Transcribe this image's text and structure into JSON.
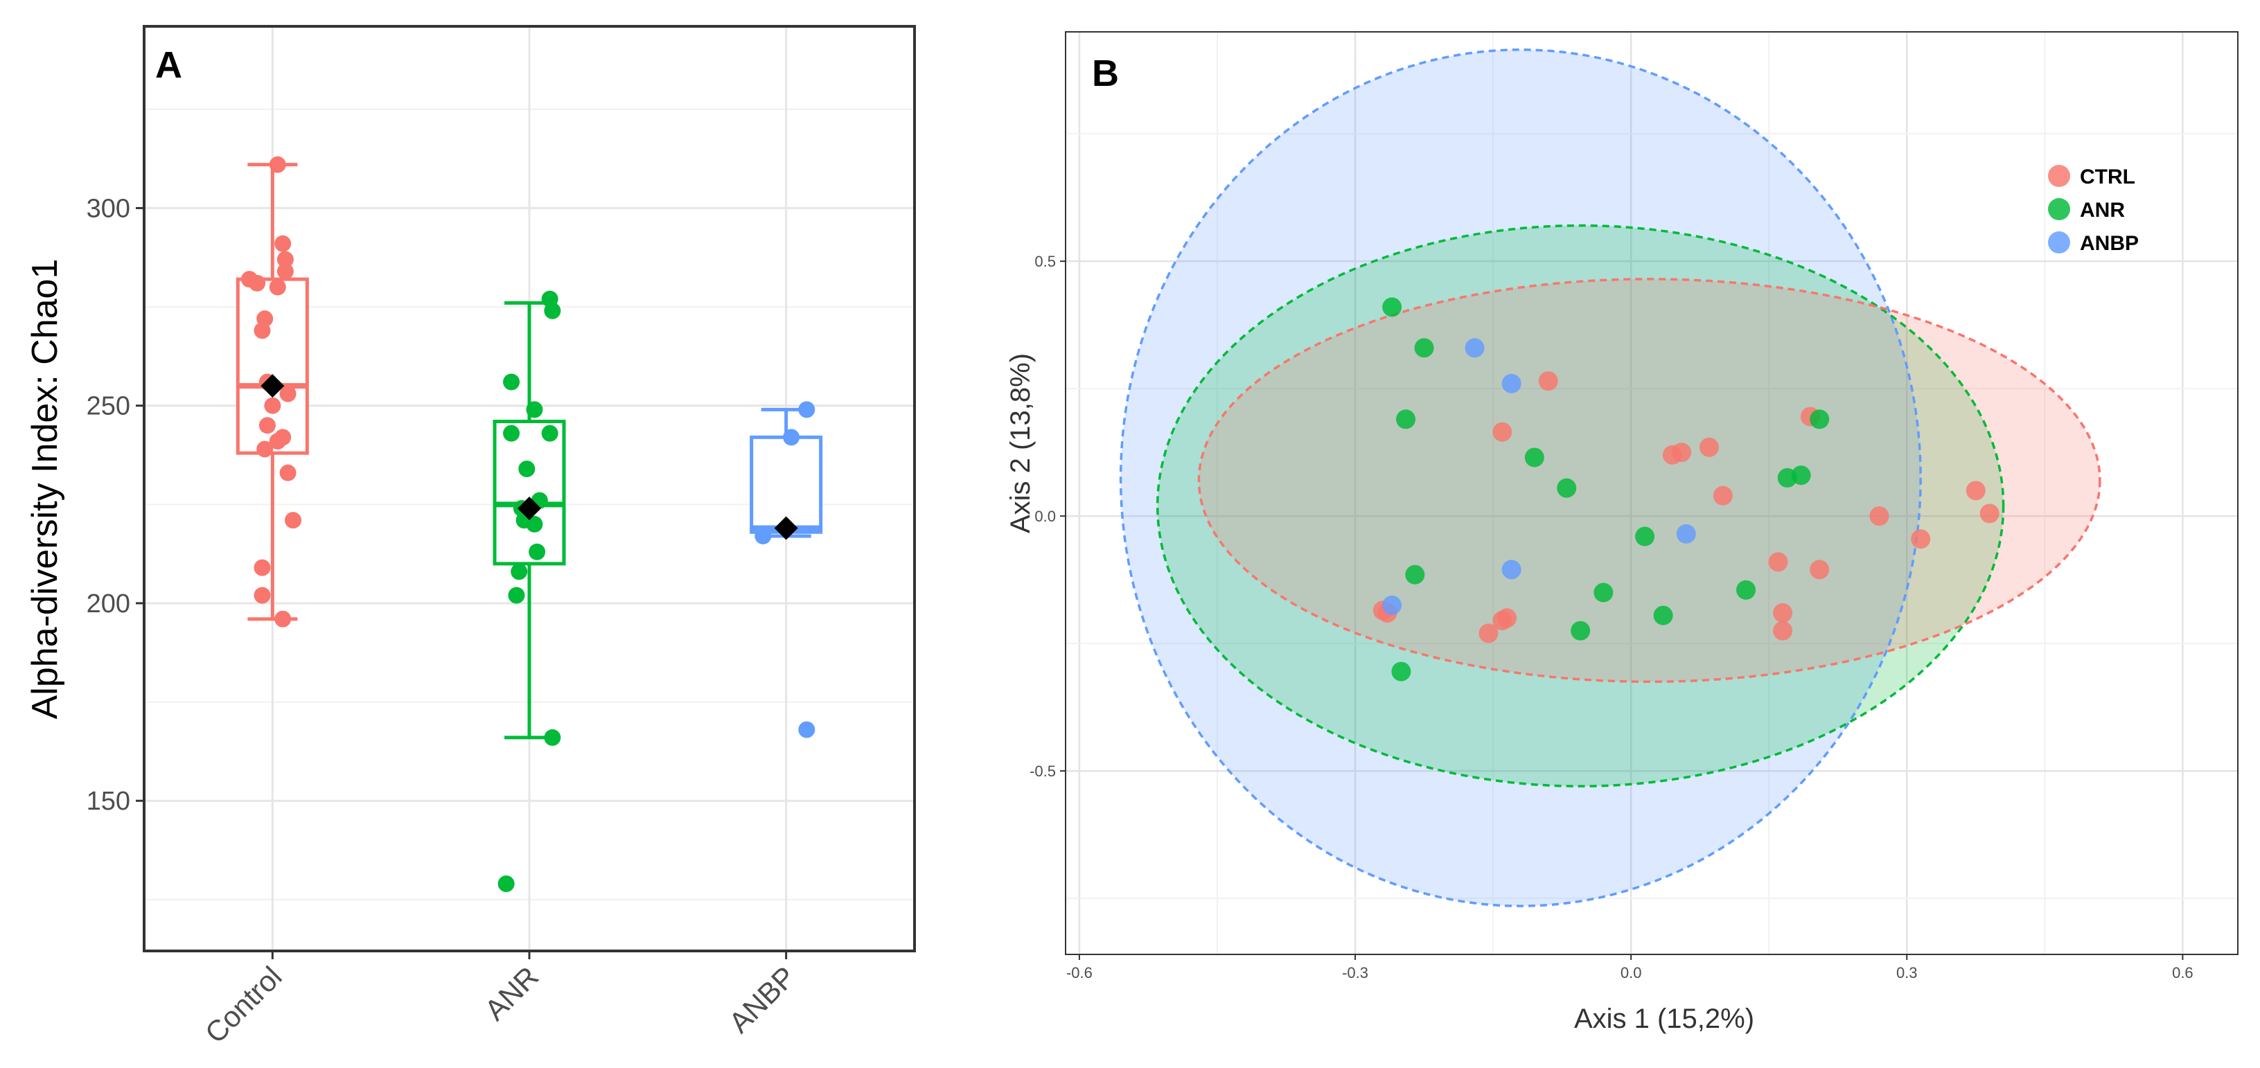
{
  "chart_data": [
    {
      "panel": "A",
      "type": "box",
      "ylabel": "Alpha-diversity Index: Chao1",
      "categories": [
        "Control",
        "ANR",
        "ANBP"
      ],
      "ylim": [
        112,
        346
      ],
      "yticks": [
        150,
        200,
        250,
        300
      ],
      "grid": true,
      "colors": {
        "Control": "#f8766d",
        "ANR": "#00ba38",
        "ANBP": "#619cff"
      },
      "boxes": [
        {
          "group": "Control",
          "whisker_low": 196,
          "q1": 238,
          "median": 255,
          "q3": 282,
          "whisker_high": 311,
          "mean": 255,
          "points": [
            [
              0.02,
              311
            ],
            [
              0.04,
              291
            ],
            [
              0.05,
              287
            ],
            [
              0.05,
              284
            ],
            [
              -0.09,
              282
            ],
            [
              -0.06,
              281
            ],
            [
              0.02,
              280
            ],
            [
              -0.03,
              272
            ],
            [
              -0.04,
              269
            ],
            [
              -0.02,
              256
            ],
            [
              0.06,
              253
            ],
            [
              0.0,
              250
            ],
            [
              -0.02,
              245
            ],
            [
              0.04,
              242
            ],
            [
              0.02,
              241
            ],
            [
              -0.03,
              239
            ],
            [
              0.06,
              233
            ],
            [
              0.08,
              221
            ],
            [
              -0.04,
              209
            ],
            [
              -0.04,
              202
            ],
            [
              0.04,
              196
            ]
          ]
        },
        {
          "group": "ANR",
          "whisker_low": 166,
          "q1": 210,
          "median": 225,
          "q3": 246,
          "whisker_high": 276,
          "mean": 224,
          "points": [
            [
              0.08,
              277
            ],
            [
              0.09,
              274
            ],
            [
              -0.07,
              256
            ],
            [
              0.02,
              249
            ],
            [
              0.08,
              243
            ],
            [
              -0.07,
              243
            ],
            [
              -0.01,
              234
            ],
            [
              0.04,
              226
            ],
            [
              -0.03,
              224
            ],
            [
              -0.02,
              221
            ],
            [
              0.02,
              220
            ],
            [
              0.03,
              213
            ],
            [
              -0.04,
              208
            ],
            [
              -0.05,
              202
            ],
            [
              0.09,
              166
            ],
            [
              -0.09,
              129
            ]
          ]
        },
        {
          "group": "ANBP",
          "whisker_low": 217,
          "q1": 218,
          "median": 219,
          "q3": 242,
          "whisker_high": 249,
          "mean": 219,
          "points": [
            [
              0.08,
              249
            ],
            [
              0.02,
              242
            ],
            [
              -0.09,
              217
            ],
            [
              0.08,
              168
            ]
          ]
        }
      ]
    },
    {
      "panel": "B",
      "type": "scatter",
      "xlabel": "Axis 1  (15,2%)",
      "ylabel": "Axis 2  (13,8%)",
      "xlim": [
        -0.615,
        0.66
      ],
      "ylim": [
        -0.86,
        0.95
      ],
      "xticks": [
        "-0.6",
        "-0.3",
        "0.0",
        "0.3",
        "0.6"
      ],
      "yticks": [
        "-0.5",
        "0.0",
        "0.5"
      ],
      "grid": true,
      "legend_position": "top-right",
      "series": [
        {
          "name": "CTRL",
          "color": "#f8766d",
          "points": [
            [
              -0.27,
              -0.185
            ],
            [
              -0.265,
              -0.19
            ],
            [
              -0.155,
              -0.23
            ],
            [
              -0.135,
              -0.2
            ],
            [
              -0.14,
              -0.205
            ],
            [
              -0.14,
              0.165
            ],
            [
              -0.09,
              0.265
            ],
            [
              0.045,
              0.12
            ],
            [
              0.055,
              0.125
            ],
            [
              0.085,
              0.135
            ],
            [
              0.1,
              0.04
            ],
            [
              0.16,
              -0.09
            ],
            [
              0.165,
              -0.19
            ],
            [
              0.165,
              -0.225
            ],
            [
              0.195,
              0.195
            ],
            [
              0.205,
              -0.105
            ],
            [
              0.27,
              0.0
            ],
            [
              0.315,
              -0.045
            ],
            [
              0.375,
              0.05
            ],
            [
              0.39,
              0.005
            ]
          ],
          "ellipse": {
            "cx": 0.02,
            "cy": 0.07,
            "rx": 0.49,
            "ry": 0.395
          }
        },
        {
          "name": "ANR",
          "color": "#00ba38",
          "points": [
            [
              -0.26,
              0.41
            ],
            [
              -0.225,
              0.33
            ],
            [
              -0.245,
              0.19
            ],
            [
              -0.235,
              -0.115
            ],
            [
              -0.25,
              -0.305
            ],
            [
              -0.105,
              0.115
            ],
            [
              -0.07,
              0.055
            ],
            [
              -0.055,
              -0.225
            ],
            [
              -0.03,
              -0.15
            ],
            [
              0.015,
              -0.04
            ],
            [
              0.035,
              -0.195
            ],
            [
              0.125,
              -0.145
            ],
            [
              0.17,
              0.075
            ],
            [
              0.185,
              0.08
            ],
            [
              0.205,
              0.19
            ]
          ],
          "ellipse": {
            "cx": -0.055,
            "cy": 0.02,
            "rx": 0.46,
            "ry": 0.55
          }
        },
        {
          "name": "ANBP",
          "color": "#619cff",
          "points": [
            [
              -0.17,
              0.33
            ],
            [
              -0.13,
              0.26
            ],
            [
              -0.13,
              -0.105
            ],
            [
              -0.26,
              -0.175
            ],
            [
              0.06,
              -0.035
            ]
          ],
          "ellipse": {
            "cx": -0.12,
            "cy": 0.075,
            "rx": 0.435,
            "ry": 0.84
          }
        }
      ]
    }
  ]
}
